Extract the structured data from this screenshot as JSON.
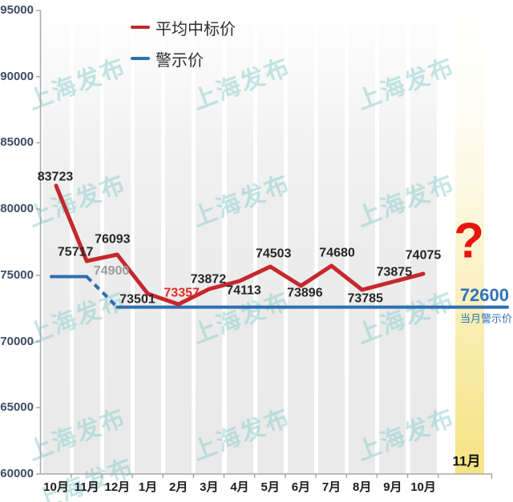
{
  "watermark": {
    "text": "上海发布",
    "color": "#8ccfca"
  },
  "legend": {
    "items": [
      {
        "label": "平均中标价",
        "color": "#c5282d"
      },
      {
        "label": "警示价",
        "color": "#2e6fae"
      }
    ]
  },
  "chart_data": {
    "type": "line",
    "title": "",
    "categories": [
      "10月",
      "11月",
      "12月",
      "1月",
      "2月",
      "3月",
      "4月",
      "5月",
      "6月",
      "7月",
      "8月",
      "9月",
      "10月"
    ],
    "future_category": "11月",
    "series": [
      {
        "name": "平均中标价",
        "color": "#c5282d",
        "values": [
          83723,
          75717,
          76093,
          73501,
          73357,
          73872,
          74113,
          74503,
          73896,
          74680,
          73785,
          73875,
          74075
        ],
        "lowest_label_index": 4,
        "lowest_label_color": "#e22b26",
        "next_value_unknown": "?"
      },
      {
        "name": "警示价",
        "color": "#2e6fae",
        "initial_value": 74900,
        "current_value": 72600,
        "drop_between": [
          "11月",
          "12月"
        ],
        "style": "solid-with-dashed-drop"
      }
    ],
    "ylim": [
      60000,
      95000
    ],
    "yticks": [
      95000,
      90000,
      85000,
      80000,
      75000,
      70000,
      65000,
      60000
    ],
    "grid": "vertical-bands",
    "legend_position": "top-left",
    "highlight_column": "11月"
  },
  "annotations": {
    "initial_warning_label": "74900",
    "current_warning_value": "72600",
    "current_warning_caption": "当月警示价",
    "unknown_next": "?",
    "next_month": "11月"
  },
  "colors": {
    "avg_line": "#c5282d",
    "warn_line": "#2e6fae",
    "warn_text": "#2f74b8",
    "question": "#e8150f",
    "axis": "#a8a8a8",
    "ytick_text": "#3e4c66",
    "xtick_text": "#1c1c1c",
    "data_label": "#262626",
    "initial_warning_text": "#9b9b9b"
  }
}
